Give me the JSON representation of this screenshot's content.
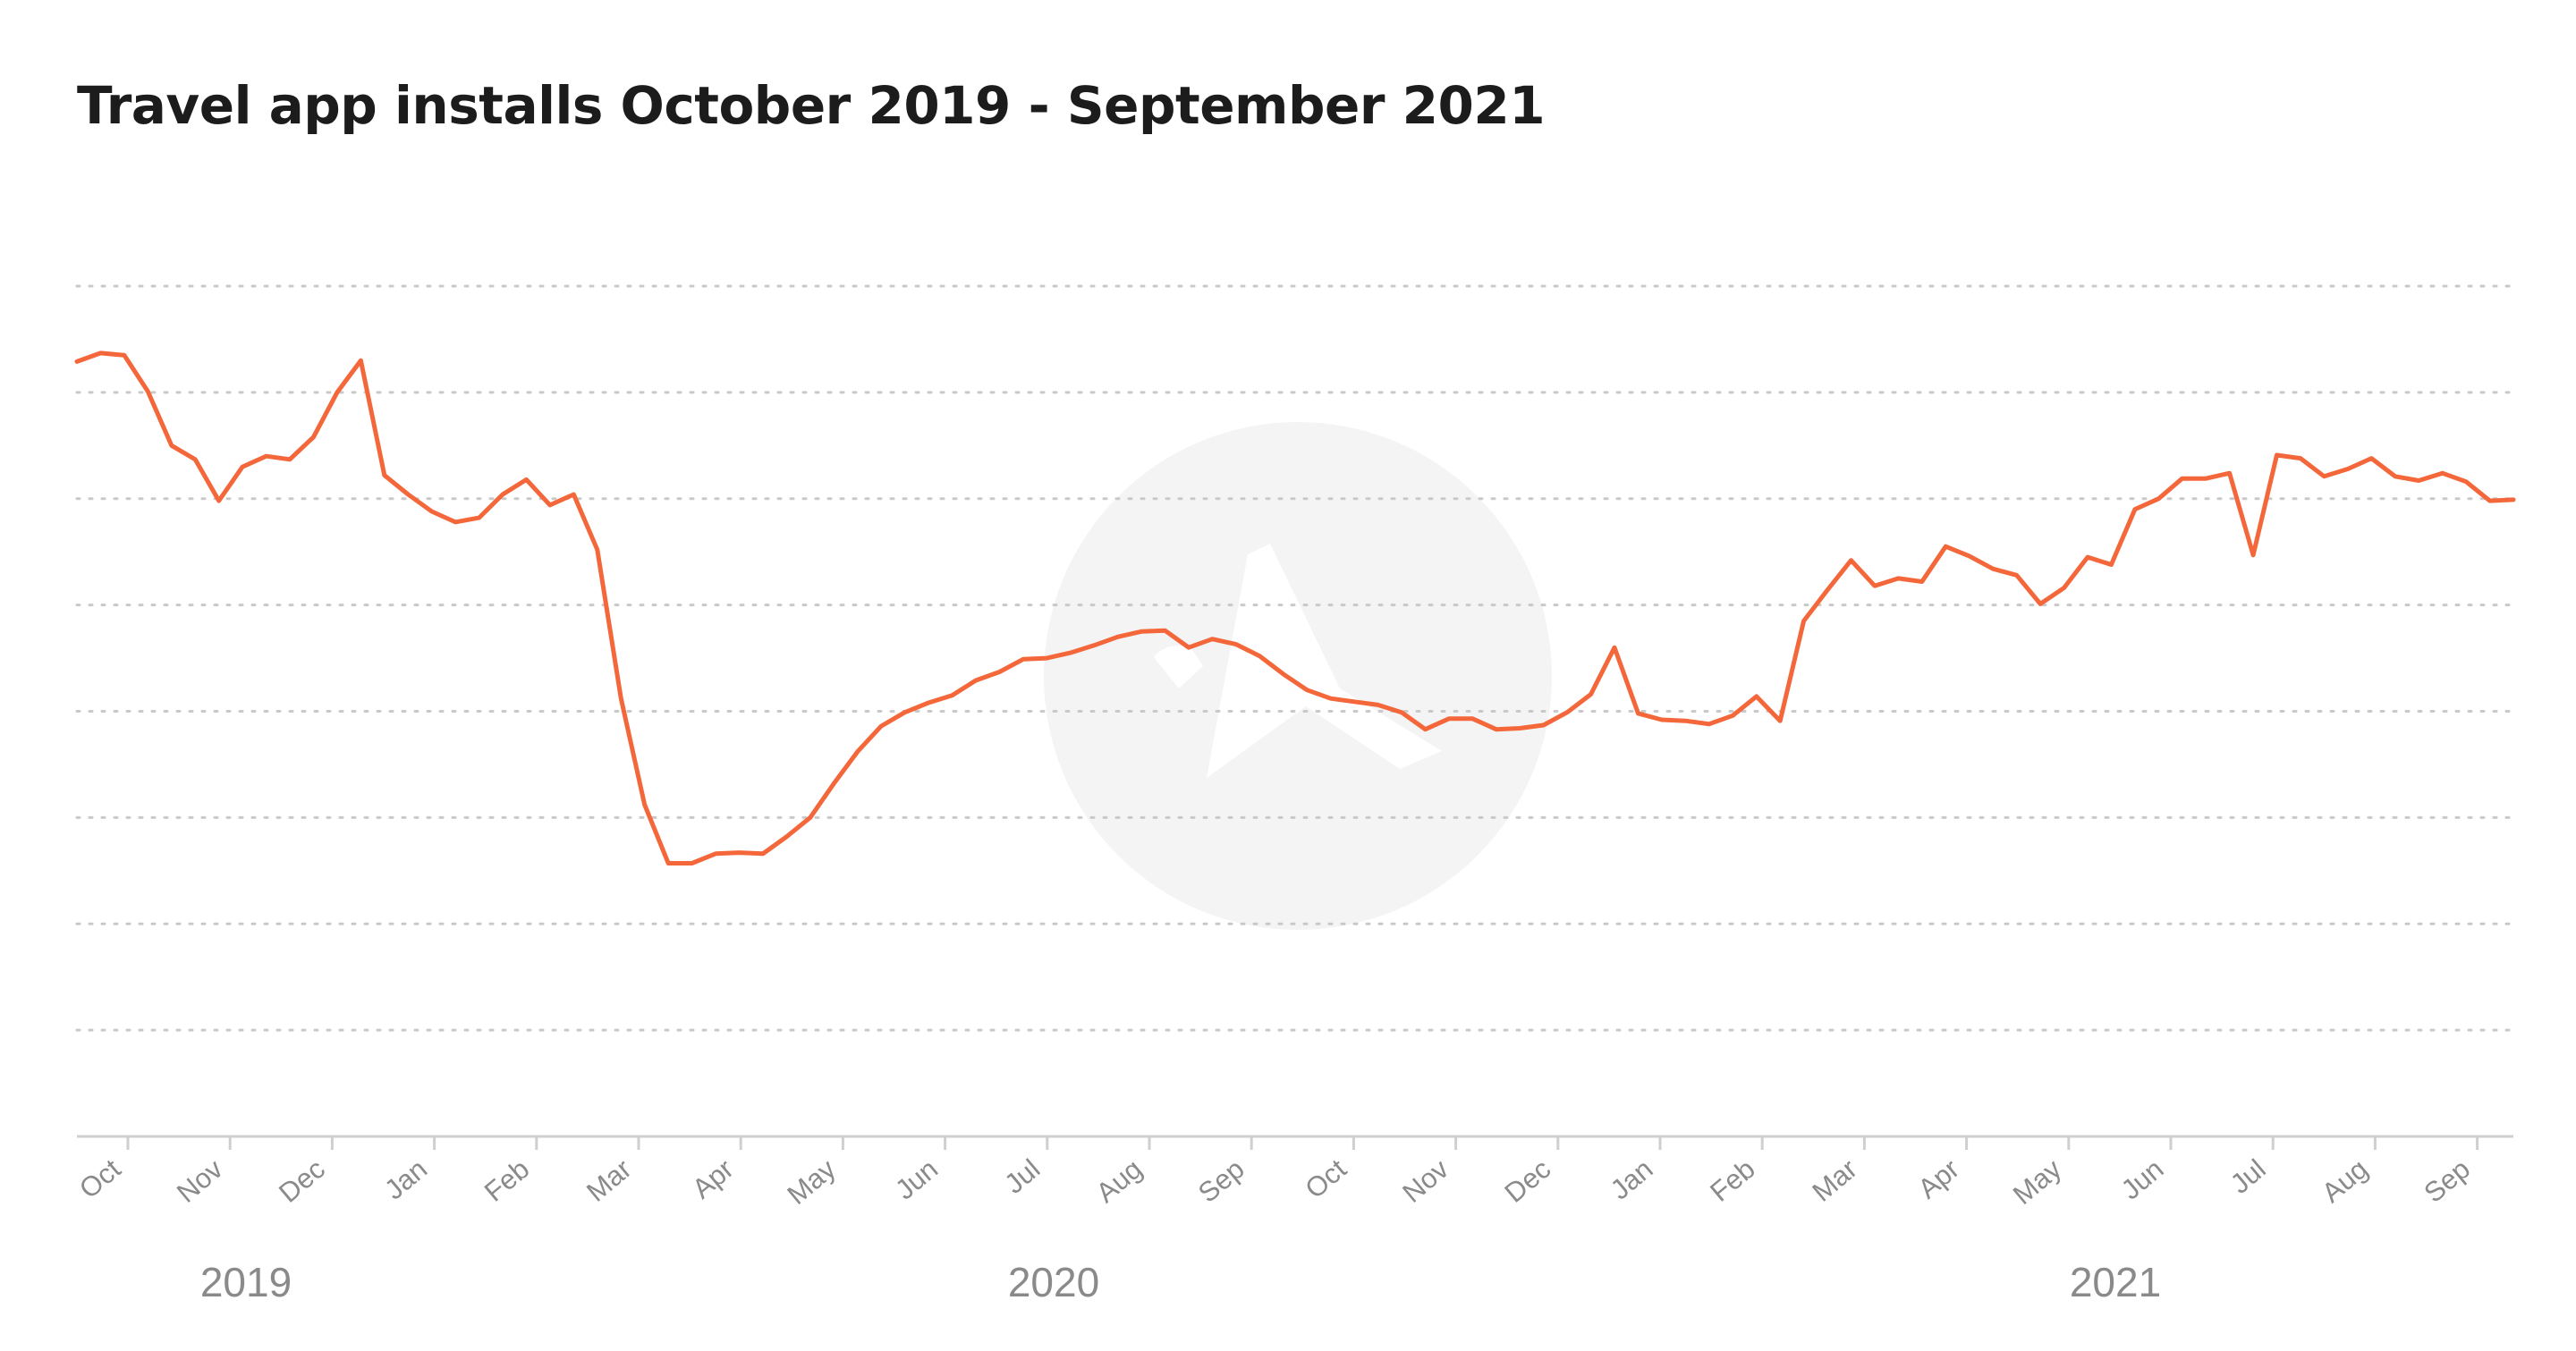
{
  "chart_data": {
    "type": "line",
    "title": "Travel app installs October 2019 - September 2021",
    "xlabel": "",
    "ylabel": "",
    "y_tick_labels_shown": false,
    "ylim": [
      0,
      8
    ],
    "grid": {
      "horizontal": true,
      "style": "dotted"
    },
    "legend": "none",
    "line_color": "#f4673a",
    "x_tick_labels": [
      "Oct",
      "Nov",
      "Dec",
      "Jan",
      "Feb",
      "Mar",
      "Apr",
      "May",
      "Jun",
      "Jul",
      "Aug",
      "Sep",
      "Oct",
      "Nov",
      "Dec",
      "Jan",
      "Feb",
      "Mar",
      "Apr",
      "May",
      "Jun",
      "Jul",
      "Aug",
      "Sep"
    ],
    "year_labels": [
      "2019",
      "2020",
      "2021"
    ],
    "series": [
      {
        "values": [
          7.29,
          7.37,
          7.35,
          7.01,
          6.5,
          6.37,
          5.98,
          6.3,
          6.4,
          6.37,
          6.58,
          7.0,
          7.3,
          6.22,
          6.04,
          5.88,
          5.78,
          5.82,
          6.04,
          6.18,
          5.94,
          6.04,
          5.52,
          4.12,
          3.12,
          2.57,
          2.57,
          2.66,
          2.67,
          2.66,
          2.82,
          3.0,
          3.32,
          3.62,
          3.86,
          3.99,
          4.08,
          4.15,
          4.29,
          4.37,
          4.49,
          4.5,
          4.55,
          4.62,
          4.7,
          4.75,
          4.76,
          4.6,
          4.68,
          4.63,
          4.52,
          4.35,
          4.2,
          4.12,
          4.09,
          4.06,
          3.99,
          3.83,
          3.93,
          3.93,
          3.83,
          3.84,
          3.87,
          3.99,
          4.16,
          4.6,
          3.98,
          3.92,
          3.91,
          3.88,
          3.96,
          4.14,
          3.91,
          4.85,
          5.14,
          5.42,
          5.18,
          5.25,
          5.22,
          5.55,
          5.46,
          5.34,
          5.28,
          5.01,
          5.16,
          5.45,
          5.38,
          5.9,
          6.0,
          6.19,
          6.19,
          6.24,
          5.47,
          6.41,
          6.38,
          6.21,
          6.28,
          6.38,
          6.21,
          6.17,
          6.24,
          6.16,
          5.98,
          5.99
        ]
      }
    ]
  },
  "watermark_icon": "logo-watermark-icon"
}
